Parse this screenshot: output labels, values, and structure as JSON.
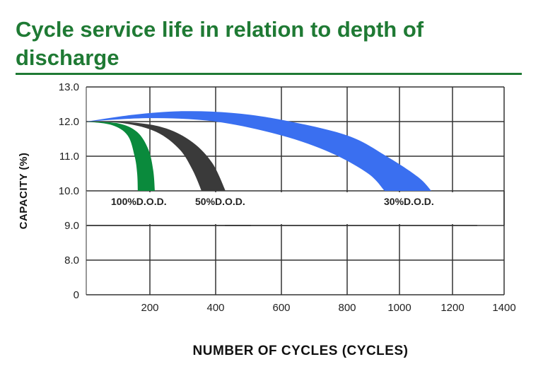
{
  "title": "Cycle service life in relation to depth of discharge",
  "chart_data": {
    "type": "area",
    "title": "Cycle service life in relation to depth of discharge",
    "xlabel": "NUMBER OF CYCLES (CYCLES)",
    "ylabel": "CAPACITY (%)",
    "x_ticks": [
      "200",
      "400",
      "600",
      "800",
      "1000",
      "1200",
      "1400"
    ],
    "y_ticks": [
      "0",
      "8.0",
      "9.0",
      "10.0",
      "11.0",
      "12.0",
      "13.0"
    ],
    "xlim": [
      0,
      1400
    ],
    "grid": true,
    "series": [
      {
        "name": "100%D.O.D.",
        "color": "#0a8a3c",
        "upper": [
          [
            0,
            12
          ],
          [
            100,
            11.95
          ],
          [
            160,
            11.7
          ],
          [
            195,
            11.2
          ],
          [
            210,
            10.6
          ],
          [
            215,
            10
          ]
        ],
        "lower": [
          [
            0,
            12
          ],
          [
            80,
            11.9
          ],
          [
            130,
            11.6
          ],
          [
            152,
            11.0
          ],
          [
            160,
            10.5
          ],
          [
            162,
            10
          ]
        ]
      },
      {
        "name": "50%D.O.D.",
        "color": "#3a3a3a",
        "upper": [
          [
            0,
            12
          ],
          [
            150,
            11.97
          ],
          [
            250,
            11.8
          ],
          [
            330,
            11.4
          ],
          [
            390,
            10.8
          ],
          [
            430,
            10
          ]
        ],
        "lower": [
          [
            0,
            12
          ],
          [
            120,
            11.95
          ],
          [
            220,
            11.7
          ],
          [
            290,
            11.2
          ],
          [
            330,
            10.6
          ],
          [
            357,
            10
          ]
        ]
      },
      {
        "name": "30%D.O.D.",
        "color": "#3a6ff0",
        "upper": [
          [
            0,
            12
          ],
          [
            150,
            12.2
          ],
          [
            300,
            12.3
          ],
          [
            450,
            12.25
          ],
          [
            600,
            12.05
          ],
          [
            800,
            11.6
          ],
          [
            950,
            11.0
          ],
          [
            1070,
            10.4
          ],
          [
            1120,
            10
          ]
        ],
        "lower": [
          [
            0,
            12
          ],
          [
            200,
            12.1
          ],
          [
            400,
            12.0
          ],
          [
            600,
            11.6
          ],
          [
            750,
            11.1
          ],
          [
            880,
            10.5
          ],
          [
            943,
            10
          ]
        ]
      }
    ]
  }
}
